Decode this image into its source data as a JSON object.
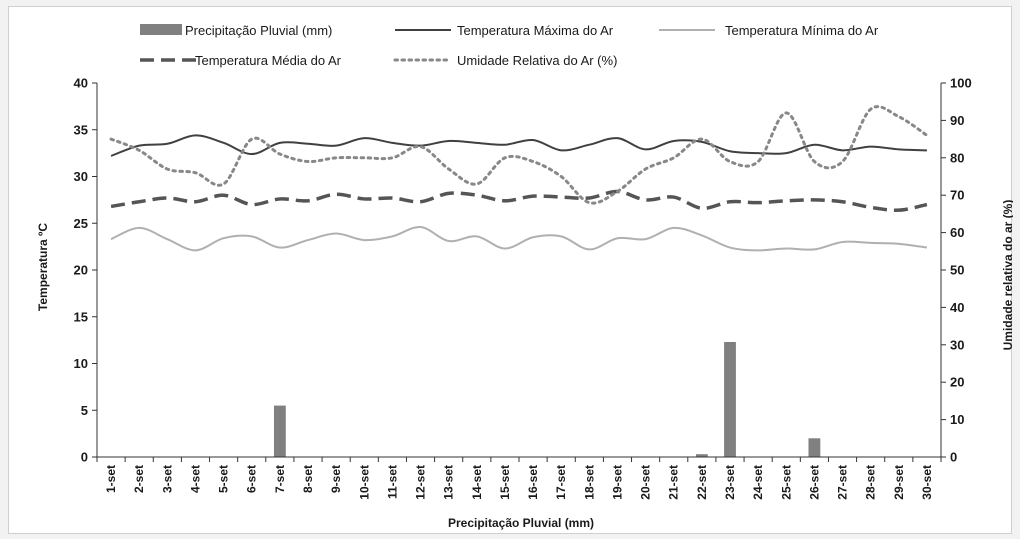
{
  "chart_data": {
    "type": "line",
    "categories": [
      "1-set",
      "2-set",
      "3-set",
      "4-set",
      "5-set",
      "6-set",
      "7-set",
      "8-set",
      "9-set",
      "10-set",
      "11-set",
      "12-set",
      "13-set",
      "14-set",
      "15-set",
      "16-set",
      "17-set",
      "18-set",
      "19-set",
      "20-set",
      "21-set",
      "22-set",
      "23-set",
      "24-set",
      "25-set",
      "26-set",
      "27-set",
      "28-set",
      "29-set",
      "30-set"
    ],
    "xlabel": "Precipitação Pluvial (mm)",
    "ylabel_left": "Temperatura ºC",
    "ylabel_right": "Umidade relativa do ar (%)",
    "ylim_left": [
      0,
      40
    ],
    "ylim_right": [
      0,
      100
    ],
    "yticks_left": [
      0,
      5,
      10,
      15,
      20,
      25,
      30,
      35,
      40
    ],
    "yticks_right": [
      0,
      10,
      20,
      30,
      40,
      50,
      60,
      70,
      80,
      90,
      100
    ],
    "grid": false,
    "legend_position": "top",
    "series": [
      {
        "name": "Precipitação Pluvial (mm)",
        "kind": "bar",
        "axis": "left",
        "color": "#808080",
        "values": [
          0,
          0,
          0,
          0,
          0,
          0,
          5.5,
          0,
          0,
          0,
          0,
          0,
          0,
          0,
          0,
          0,
          0,
          0,
          0,
          0,
          0,
          0.3,
          12.3,
          0,
          0,
          2.0,
          0,
          0,
          0,
          0
        ]
      },
      {
        "name": "Temperatura Máxima do Ar",
        "kind": "line",
        "style": "solid",
        "axis": "left",
        "color": "#404040",
        "values": [
          32.2,
          33.3,
          33.5,
          34.4,
          33.6,
          32.4,
          33.6,
          33.5,
          33.3,
          34.1,
          33.6,
          33.3,
          33.8,
          33.6,
          33.4,
          33.9,
          32.8,
          33.4,
          34.1,
          32.9,
          33.8,
          33.7,
          32.7,
          32.5,
          32.5,
          33.4,
          32.8,
          33.2,
          32.9,
          32.8
        ]
      },
      {
        "name": "Temperatura Mínima do Ar",
        "kind": "line",
        "style": "solid",
        "axis": "left",
        "color": "#b0b0b0",
        "values": [
          23.3,
          24.5,
          23.3,
          22.1,
          23.4,
          23.6,
          22.4,
          23.2,
          23.9,
          23.2,
          23.6,
          24.6,
          23.1,
          23.6,
          22.3,
          23.5,
          23.6,
          22.2,
          23.4,
          23.3,
          24.5,
          23.7,
          22.4,
          22.1,
          22.3,
          22.2,
          23.0,
          22.9,
          22.8,
          22.4
        ]
      },
      {
        "name": "Temperatura Média do Ar",
        "kind": "line",
        "style": "dashed",
        "axis": "left",
        "color": "#555555",
        "values": [
          26.8,
          27.3,
          27.7,
          27.3,
          28.0,
          27.0,
          27.6,
          27.4,
          28.1,
          27.6,
          27.7,
          27.3,
          28.2,
          28.0,
          27.4,
          27.9,
          27.8,
          27.7,
          28.4,
          27.5,
          27.8,
          26.6,
          27.3,
          27.2,
          27.4,
          27.5,
          27.3,
          26.7,
          26.4,
          27.0
        ]
      },
      {
        "name": "Umidade Relativa do Ar (%)",
        "kind": "line",
        "style": "dotted",
        "axis": "right",
        "color": "#888888",
        "values": [
          85,
          82,
          77,
          76,
          73,
          85,
          81,
          79,
          80,
          80,
          80,
          83,
          77,
          73,
          80,
          79,
          75,
          68,
          71,
          77,
          80,
          85,
          79,
          79,
          92,
          79,
          79,
          93,
          91,
          86
        ]
      }
    ]
  }
}
